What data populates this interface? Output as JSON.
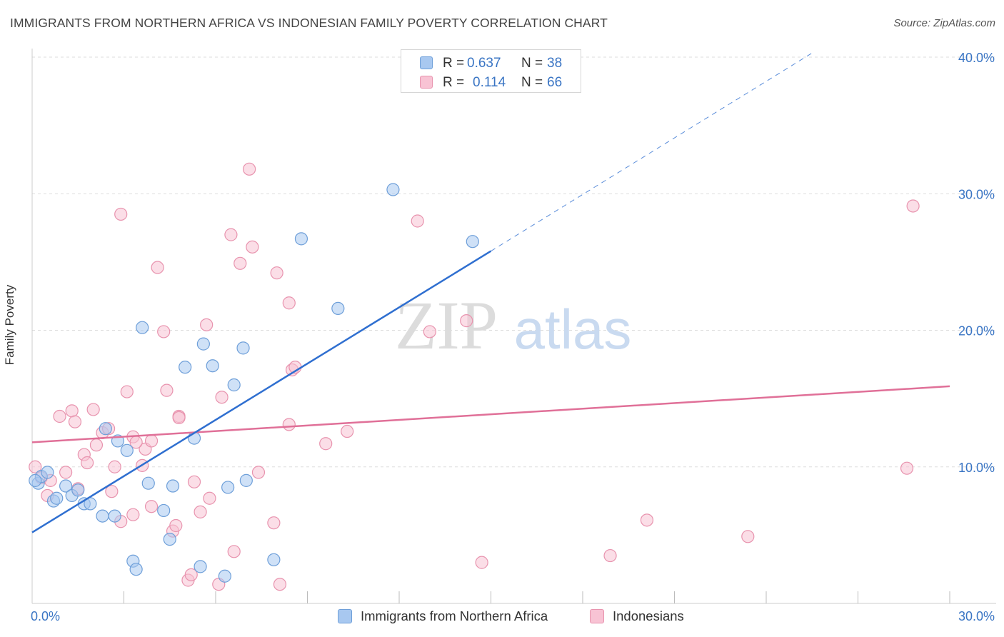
{
  "title": "IMMIGRANTS FROM NORTHERN AFRICA VS INDONESIAN FAMILY POVERTY CORRELATION CHART",
  "source": "Source: ZipAtlas.com",
  "watermark": {
    "zip": "ZIP",
    "atlas": "atlas"
  },
  "legend_stats": [
    {
      "r_label": "R =",
      "r_value": "0.637",
      "n_label": "N =",
      "n_value": "38",
      "color": "#a8c8f0",
      "border": "#6e9fd9"
    },
    {
      "r_label": "R =",
      "r_value": "0.114",
      "n_label": "N =",
      "n_value": "66",
      "color": "#f8c3d4",
      "border": "#e893ae"
    }
  ],
  "chart_data": {
    "type": "scatter",
    "title": "IMMIGRANTS FROM NORTHERN AFRICA VS INDONESIAN FAMILY POVERTY CORRELATION CHART",
    "xlabel": "",
    "ylabel": "Family Poverty",
    "xlim": [
      0,
      30
    ],
    "ylim": [
      0,
      40
    ],
    "x_tick_labels": [
      "0.0%",
      "30.0%"
    ],
    "y_tick_labels": [
      "10.0%",
      "20.0%",
      "30.0%",
      "40.0%"
    ],
    "y_ticks": [
      10,
      20,
      30,
      40
    ],
    "grid": "horizontal dashed",
    "legend_position": "bottom",
    "series": [
      {
        "name": "Immigrants from Northern Africa",
        "color": "#a8c8f0",
        "stroke": "#6e9fd9",
        "trend_color": "#2f6fd0",
        "trend": {
          "x_start": 0.0,
          "y_start": 5.2,
          "x_end": 15.0,
          "y_end": 25.8,
          "dashed_to_x": 25.5,
          "dashed_to_y": 40.3
        },
        "points": [
          [
            0.2,
            8.8
          ],
          [
            0.3,
            9.3
          ],
          [
            0.5,
            9.6
          ],
          [
            0.7,
            7.5
          ],
          [
            0.8,
            7.7
          ],
          [
            1.1,
            8.6
          ],
          [
            1.3,
            7.9
          ],
          [
            1.5,
            8.3
          ],
          [
            1.7,
            7.3
          ],
          [
            1.9,
            7.3
          ],
          [
            2.3,
            6.4
          ],
          [
            2.4,
            12.8
          ],
          [
            2.7,
            6.4
          ],
          [
            2.8,
            11.9
          ],
          [
            3.1,
            11.2
          ],
          [
            3.3,
            3.1
          ],
          [
            3.4,
            2.5
          ],
          [
            3.6,
            20.2
          ],
          [
            3.8,
            8.8
          ],
          [
            4.3,
            6.8
          ],
          [
            4.5,
            4.7
          ],
          [
            4.6,
            8.6
          ],
          [
            5.0,
            17.3
          ],
          [
            5.3,
            12.1
          ],
          [
            5.5,
            2.7
          ],
          [
            5.6,
            19.0
          ],
          [
            5.9,
            17.4
          ],
          [
            6.3,
            2.0
          ],
          [
            6.4,
            8.5
          ],
          [
            6.6,
            16.0
          ],
          [
            6.9,
            18.7
          ],
          [
            7.0,
            9.0
          ],
          [
            7.9,
            3.2
          ],
          [
            8.8,
            26.7
          ],
          [
            10.0,
            21.6
          ],
          [
            11.8,
            30.3
          ],
          [
            14.4,
            26.5
          ],
          [
            0.1,
            9.0
          ]
        ]
      },
      {
        "name": "Indonesians",
        "color": "#f8c3d4",
        "stroke": "#e893ae",
        "trend_color": "#e07098",
        "trend": {
          "x_start": 0.0,
          "y_start": 11.8,
          "x_end": 30.0,
          "y_end": 15.9
        },
        "points": [
          [
            0.1,
            10.0
          ],
          [
            0.3,
            9.2
          ],
          [
            0.5,
            7.9
          ],
          [
            0.6,
            9.0
          ],
          [
            0.9,
            13.7
          ],
          [
            1.1,
            9.6
          ],
          [
            1.3,
            14.1
          ],
          [
            1.4,
            13.3
          ],
          [
            1.5,
            8.4
          ],
          [
            1.7,
            10.9
          ],
          [
            1.8,
            10.3
          ],
          [
            2.0,
            14.2
          ],
          [
            2.1,
            11.6
          ],
          [
            2.3,
            12.5
          ],
          [
            2.5,
            12.8
          ],
          [
            2.6,
            8.2
          ],
          [
            2.7,
            10.0
          ],
          [
            2.9,
            6.0
          ],
          [
            2.9,
            28.5
          ],
          [
            3.1,
            15.5
          ],
          [
            3.3,
            6.5
          ],
          [
            3.3,
            12.2
          ],
          [
            3.6,
            10.1
          ],
          [
            3.7,
            11.3
          ],
          [
            3.9,
            11.9
          ],
          [
            3.9,
            7.1
          ],
          [
            4.1,
            24.6
          ],
          [
            4.3,
            19.9
          ],
          [
            4.4,
            15.6
          ],
          [
            4.6,
            5.3
          ],
          [
            4.7,
            5.7
          ],
          [
            4.8,
            13.7
          ],
          [
            5.1,
            1.7
          ],
          [
            5.2,
            2.1
          ],
          [
            5.3,
            8.9
          ],
          [
            5.5,
            6.7
          ],
          [
            5.7,
            20.4
          ],
          [
            5.8,
            7.7
          ],
          [
            6.1,
            1.4
          ],
          [
            6.2,
            15.1
          ],
          [
            6.5,
            27.0
          ],
          [
            6.6,
            3.8
          ],
          [
            6.8,
            24.9
          ],
          [
            7.1,
            31.8
          ],
          [
            7.2,
            26.1
          ],
          [
            7.4,
            9.6
          ],
          [
            7.9,
            5.9
          ],
          [
            8.0,
            24.2
          ],
          [
            8.1,
            1.4
          ],
          [
            8.4,
            13.1
          ],
          [
            8.4,
            22.0
          ],
          [
            8.5,
            17.1
          ],
          [
            8.6,
            17.3
          ],
          [
            9.6,
            11.7
          ],
          [
            10.3,
            12.6
          ],
          [
            12.6,
            28.0
          ],
          [
            13.0,
            19.9
          ],
          [
            14.2,
            20.7
          ],
          [
            14.7,
            3.0
          ],
          [
            18.9,
            3.5
          ],
          [
            20.1,
            6.1
          ],
          [
            23.4,
            4.9
          ],
          [
            28.6,
            9.9
          ],
          [
            28.8,
            29.1
          ],
          [
            4.8,
            13.6
          ],
          [
            3.4,
            11.8
          ]
        ]
      }
    ]
  }
}
